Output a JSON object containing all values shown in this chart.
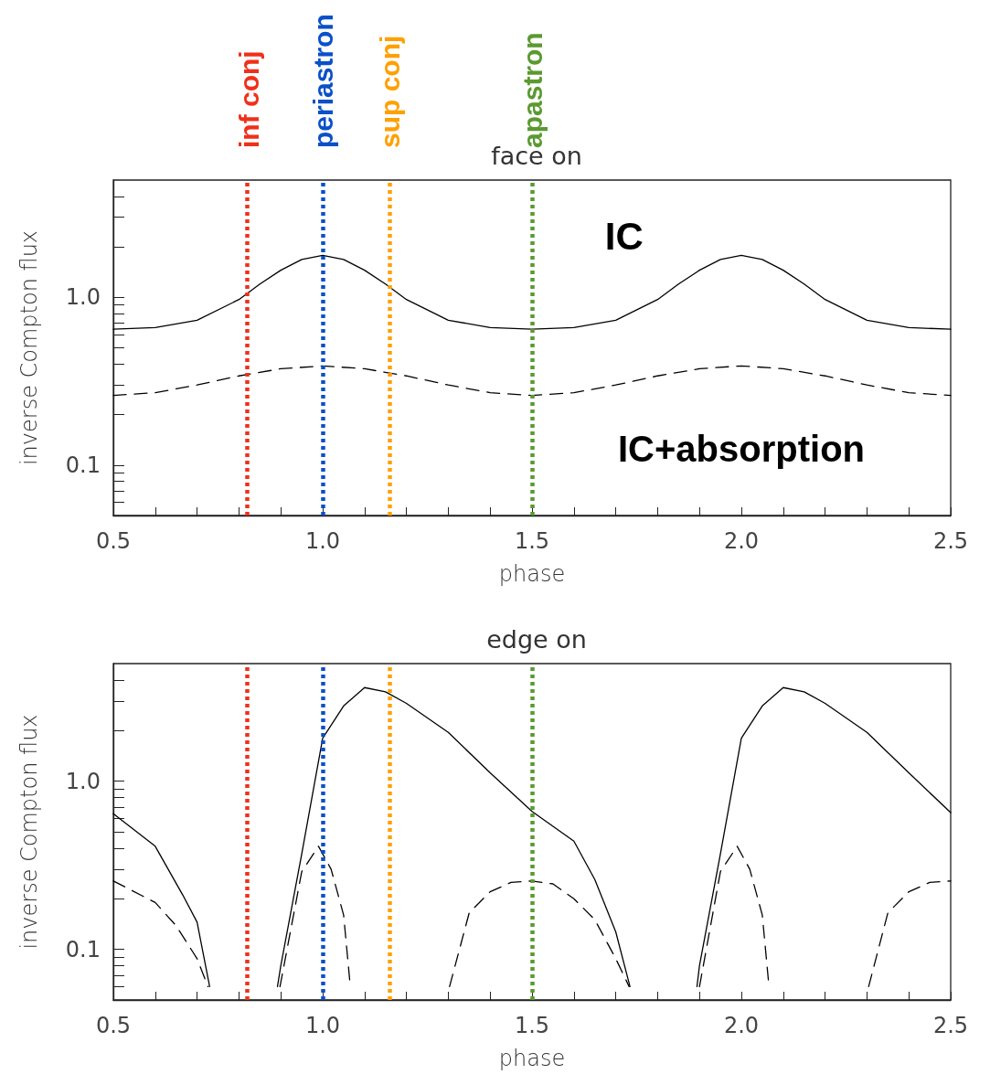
{
  "chart_data": [
    {
      "type": "line",
      "title": "face on",
      "xlabel": "phase",
      "ylabel": "inverse Compton flux",
      "log": true,
      "grid": false,
      "xlim": [
        0.5,
        2.5
      ],
      "ylim": [
        0.05,
        5
      ],
      "xticks": [
        0.5,
        {
          "value": 0.6,
          "label": null
        },
        {
          "value": 0.7,
          "label": null
        },
        {
          "value": 0.8,
          "label": null
        },
        {
          "value": 0.9,
          "label": null
        },
        {
          "value": 1,
          "label": "1.0"
        },
        {
          "value": 1.1,
          "label": null
        },
        {
          "value": 1.2,
          "label": null
        },
        {
          "value": 1.3,
          "label": null
        },
        {
          "value": 1.4,
          "label": null
        },
        1.5,
        {
          "value": 1.6,
          "label": null
        },
        {
          "value": 1.7,
          "label": null
        },
        {
          "value": 1.8,
          "label": null
        },
        {
          "value": 1.9,
          "label": null
        },
        {
          "value": 2,
          "label": "2.0"
        },
        {
          "value": 2.1,
          "label": null
        },
        {
          "value": 2.2,
          "label": null
        },
        {
          "value": 2.3,
          "label": null
        },
        {
          "value": 2.4,
          "label": null
        },
        2.5
      ],
      "yticks": [
        {
          "value": 0.06,
          "label": null
        },
        {
          "value": 0.07,
          "label": null
        },
        {
          "value": 0.08,
          "label": null
        },
        {
          "value": 0.09,
          "label": null
        },
        0.1,
        {
          "value": 0.2,
          "label": null
        },
        {
          "value": 0.3,
          "label": null
        },
        {
          "value": 0.4,
          "label": null
        },
        {
          "value": 0.5,
          "label": null
        },
        {
          "value": 0.6,
          "label": null
        },
        {
          "value": 0.7,
          "label": null
        },
        {
          "value": 0.8,
          "label": null
        },
        {
          "value": 0.9,
          "label": null
        },
        {
          "value": 1,
          "label": "1.0"
        },
        {
          "value": 2,
          "label": null
        },
        {
          "value": 3,
          "label": null
        },
        {
          "value": 4,
          "label": null
        }
      ],
      "series": [
        {
          "color": "#000000",
          "line_style": "solid",
          "x": [
            0.5,
            0.6,
            0.7,
            0.8,
            0.85,
            0.9,
            0.95,
            1.0,
            1.05,
            1.1,
            1.15,
            1.2,
            1.3,
            1.4,
            1.5,
            1.6,
            1.7,
            1.8,
            1.85,
            1.9,
            1.95,
            2.0,
            2.05,
            2.1,
            2.15,
            2.2,
            2.3,
            2.4,
            2.5
          ],
          "values": [
            0.645,
            0.66,
            0.73,
            0.97,
            1.2,
            1.45,
            1.68,
            1.78,
            1.68,
            1.45,
            1.2,
            0.97,
            0.73,
            0.66,
            0.645,
            0.66,
            0.73,
            0.97,
            1.2,
            1.45,
            1.68,
            1.78,
            1.68,
            1.45,
            1.2,
            0.97,
            0.73,
            0.66,
            0.645
          ]
        },
        {
          "color": "#000000",
          "line_style": "dashed",
          "x": [
            0.5,
            0.6,
            0.7,
            0.8,
            0.9,
            1.0,
            1.1,
            1.2,
            1.3,
            1.4,
            1.5,
            1.6,
            1.7,
            1.8,
            1.9,
            2.0,
            2.1,
            2.2,
            2.3,
            2.4,
            2.5
          ],
          "values": [
            0.26,
            0.27,
            0.3,
            0.34,
            0.375,
            0.39,
            0.375,
            0.34,
            0.3,
            0.27,
            0.26,
            0.27,
            0.3,
            0.34,
            0.375,
            0.39,
            0.375,
            0.34,
            0.3,
            0.27,
            0.26
          ]
        }
      ],
      "ref_lines": [
        {
          "axis": "x",
          "value": 0.825,
          "label": "inf conj",
          "color": "#f0301a",
          "line_style": "dotted"
        },
        {
          "axis": "x",
          "value": 1.0,
          "label": "periastron",
          "color": "#0a50c8",
          "line_style": "dotted"
        },
        {
          "axis": "x",
          "value": 1.16,
          "label": "sup conj",
          "color": "#ffa000",
          "line_style": "dotted"
        },
        {
          "axis": "x",
          "value": 1.5,
          "label": "apastron",
          "color": "#5a9a30",
          "line_style": "dotted"
        }
      ],
      "annotations": [
        "IC",
        "IC+absorption"
      ]
    },
    {
      "type": "line",
      "title": "edge on",
      "xlabel": "phase",
      "ylabel": "inverse Compton flux",
      "log": true,
      "grid": false,
      "xlim": [
        0.5,
        2.5
      ],
      "ylim": [
        0.05,
        5
      ],
      "xticks": [
        0.5,
        {
          "value": 0.6,
          "label": null
        },
        {
          "value": 0.7,
          "label": null
        },
        {
          "value": 0.8,
          "label": null
        },
        {
          "value": 0.9,
          "label": null
        },
        {
          "value": 1,
          "label": "1.0"
        },
        {
          "value": 1.1,
          "label": null
        },
        {
          "value": 1.2,
          "label": null
        },
        {
          "value": 1.3,
          "label": null
        },
        {
          "value": 1.4,
          "label": null
        },
        1.5,
        {
          "value": 1.6,
          "label": null
        },
        {
          "value": 1.7,
          "label": null
        },
        {
          "value": 1.8,
          "label": null
        },
        {
          "value": 1.9,
          "label": null
        },
        {
          "value": 2,
          "label": "2.0"
        },
        {
          "value": 2.1,
          "label": null
        },
        {
          "value": 2.2,
          "label": null
        },
        {
          "value": 2.3,
          "label": null
        },
        {
          "value": 2.4,
          "label": null
        },
        2.5
      ],
      "yticks": [
        {
          "value": 0.06,
          "label": null
        },
        {
          "value": 0.07,
          "label": null
        },
        {
          "value": 0.08,
          "label": null
        },
        {
          "value": 0.09,
          "label": null
        },
        0.1,
        {
          "value": 0.2,
          "label": null
        },
        {
          "value": 0.3,
          "label": null
        },
        {
          "value": 0.4,
          "label": null
        },
        {
          "value": 0.5,
          "label": null
        },
        {
          "value": 0.6,
          "label": null
        },
        {
          "value": 0.7,
          "label": null
        },
        {
          "value": 0.8,
          "label": null
        },
        {
          "value": 0.9,
          "label": null
        },
        {
          "value": 1,
          "label": "1.0"
        },
        {
          "value": 2,
          "label": null
        },
        {
          "value": 3,
          "label": null
        },
        {
          "value": 4,
          "label": null
        }
      ],
      "series": [
        {
          "color": "#000000",
          "line_style": "solid",
          "x": [
            0.5,
            0.6,
            0.666,
            0.7,
            0.73,
            0.8,
            0.892,
            0.9,
            0.95,
            1.0,
            1.05,
            1.1,
            1.15,
            1.2,
            1.3,
            1.4,
            1.5,
            1.6,
            1.65,
            1.7,
            1.734,
            1.8,
            1.894,
            1.9,
            1.95,
            2.0,
            2.05,
            2.1,
            2.15,
            2.2,
            2.3,
            2.4,
            2.5
          ],
          "values": [
            0.64,
            0.41,
            0.21,
            0.145,
            0.06,
            null,
            0.06,
            0.08,
            0.37,
            1.8,
            2.8,
            3.6,
            3.4,
            2.9,
            1.95,
            1.12,
            0.66,
            0.44,
            0.26,
            0.127,
            0.06,
            null,
            0.06,
            0.08,
            0.37,
            1.8,
            2.8,
            3.6,
            3.4,
            2.9,
            1.95,
            1.12,
            0.65
          ]
        },
        {
          "color": "#000000",
          "line_style": "dashed",
          "x": [
            0.5,
            0.6,
            0.65,
            0.7,
            0.726,
            0.8,
            0.898,
            0.95,
            0.99,
            1.02,
            1.05,
            1.066,
            1.2,
            1.303,
            1.35,
            1.4,
            1.45,
            1.5,
            1.55,
            1.6,
            1.65,
            1.7,
            1.732,
            1.8,
            1.9,
            1.95,
            1.99,
            2.02,
            2.05,
            2.066,
            2.2,
            2.304,
            2.35,
            2.4,
            2.45,
            2.5
          ],
          "values": [
            0.255,
            0.19,
            0.138,
            0.088,
            0.06,
            null,
            0.06,
            0.29,
            0.41,
            0.3,
            0.16,
            0.06,
            null,
            0.06,
            0.165,
            0.22,
            0.25,
            0.255,
            0.245,
            0.2,
            0.15,
            0.088,
            0.06,
            null,
            0.06,
            0.29,
            0.41,
            0.3,
            0.16,
            0.06,
            null,
            0.06,
            0.165,
            0.22,
            0.25,
            0.255
          ]
        }
      ],
      "ref_lines": [
        {
          "axis": "x",
          "value": 0.825,
          "label": null,
          "color": "#f0301a",
          "line_style": "dotted"
        },
        {
          "axis": "x",
          "value": 1.0,
          "label": null,
          "color": "#0a50c8",
          "line_style": "dotted"
        },
        {
          "axis": "x",
          "value": 1.16,
          "label": null,
          "color": "#ffa000",
          "line_style": "dotted"
        },
        {
          "axis": "x",
          "value": 1.5,
          "label": null,
          "color": "#5a9a30",
          "line_style": "dotted"
        }
      ]
    }
  ]
}
